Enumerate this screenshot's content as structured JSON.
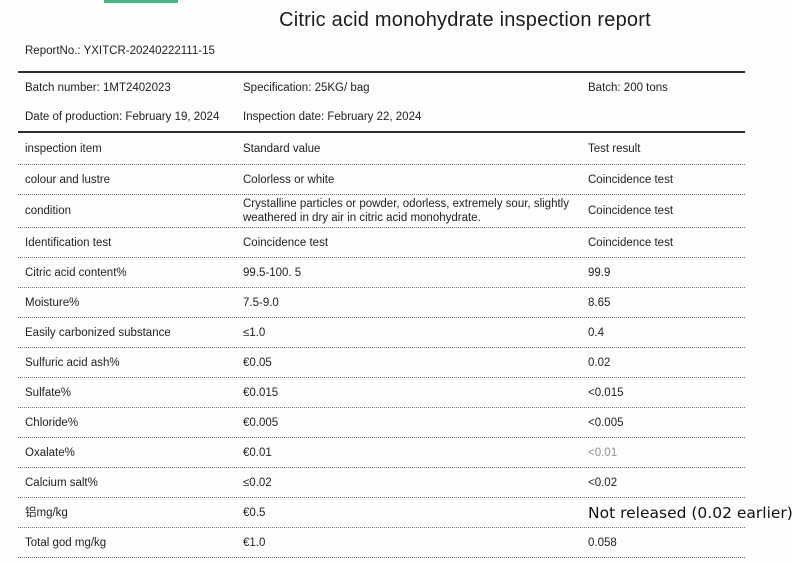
{
  "page": {
    "title": "Citric acid monohydrate inspection report",
    "report_no": "ReportNo.: YXITCR-20240222111-15"
  },
  "accent": {
    "green_bar_color": "#4ab583"
  },
  "meta": {
    "batch_number": "Batch number: 1MT2402023",
    "specification": "Specification: 25KG/ bag",
    "batch": "Batch: 200 tons",
    "date_of_production": "Date of production: February 19, 2024",
    "inspection_date": "Inspection date: February 22, 2024"
  },
  "table": {
    "headers": [
      "inspection item",
      "Standard value",
      "Test result"
    ],
    "rows": [
      {
        "item": "colour and lustre",
        "standard": "Colorless or white",
        "result": "Coincidence test"
      },
      {
        "item": "condition",
        "standard": "Crystalline particles or powder, odorless, extremely sour, slightly weathered in dry air in citric acid monohydrate.",
        "result": "Coincidence test"
      },
      {
        "item": "Identification test",
        "standard": "Coincidence test",
        "result": "Coincidence test"
      },
      {
        "item": "Citric acid content%",
        "standard": "99.5-100. 5",
        "result": "99.9"
      },
      {
        "item": "Moisture%",
        "standard": "7.5-9.0",
        "result": "8.65"
      },
      {
        "item": "Easily carbonized substance",
        "standard": "≤1.0",
        "result": "0.4"
      },
      {
        "item": "Sulfuric acid ash%",
        "standard": "€0.05",
        "result": "0.02"
      },
      {
        "item": "Sulfate%",
        "standard": "€0.015",
        "result": "<0.015"
      },
      {
        "item": "Chloride%",
        "standard": "€0.005",
        "result": "<0.005"
      },
      {
        "item": "Oxalate%",
        "standard": "€0.01",
        "result": "<0.01",
        "result_muted": true
      },
      {
        "item": "Calcium salt%",
        "standard": "≤0.02",
        "result": "<0.02"
      },
      {
        "item": "铝mg/kg",
        "standard": "€0.5",
        "result": "Not released (0.02 earlier)",
        "result_large": true
      },
      {
        "item": "Total god mg/kg",
        "standard": "€1.0",
        "result": "0.058"
      }
    ]
  }
}
